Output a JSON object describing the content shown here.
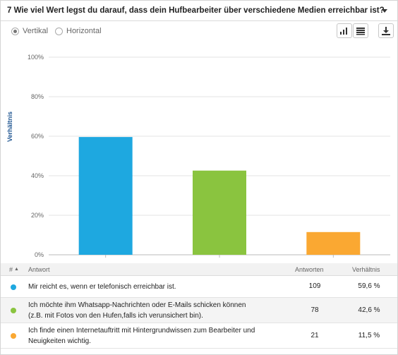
{
  "question": {
    "title": "7 Wie viel Wert legst du darauf, dass dein Hufbearbeiter über verschiedene Medien erreichbar ist?"
  },
  "orientation": {
    "vertical_label": "Vertikal",
    "horizontal_label": "Horizontal",
    "selected": "Vertikal"
  },
  "toolbar": {
    "bar_chart_icon": "bar-chart-icon",
    "table_icon": "table-icon",
    "download_icon": "download-icon"
  },
  "chart_data": {
    "type": "bar",
    "categories": [
      "Mir reicht es, wenn er telefonisch erreichbar ist.",
      "Ich möchte ihm Whatsapp-Nachrichten oder E-Mails schicken können (z.B. mit Fotos von den Hufen,falls ich verunsichert bin).",
      "Ich finde einen Internetauftritt mit Hintergrundwissen zum Bearbeiter und Neuigkeiten wichtig."
    ],
    "values": [
      59.6,
      42.6,
      11.5
    ],
    "colors": [
      "#1ea8e0",
      "#8ac43f",
      "#faa832"
    ],
    "ylabel": "Verhältnis",
    "ylim": [
      0,
      100
    ],
    "yticks": [
      "0%",
      "20%",
      "40%",
      "60%",
      "80%",
      "100%"
    ],
    "grid": true
  },
  "table": {
    "headers": {
      "num": "#",
      "answer": "Antwort",
      "count": "Antworten",
      "ratio": "Verhältnis"
    },
    "rows": [
      {
        "line1": "Mir reicht es, wenn er telefonisch erreichbar ist.",
        "line2": "",
        "count": "109",
        "ratio": "59,6 %",
        "color": "#1ea8e0"
      },
      {
        "line1": "Ich möchte ihm Whatsapp-Nachrichten oder E-Mails schicken können",
        "line2": "(z.B. mit Fotos von den Hufen,falls ich verunsichert bin).",
        "count": "78",
        "ratio": "42,6 %",
        "color": "#8ac43f"
      },
      {
        "line1": "Ich finde einen Internetauftritt mit Hintergrundwissen zum Bearbeiter und",
        "line2": "Neuigkeiten wichtig.",
        "count": "21",
        "ratio": "11,5 %",
        "color": "#faa832"
      }
    ]
  }
}
